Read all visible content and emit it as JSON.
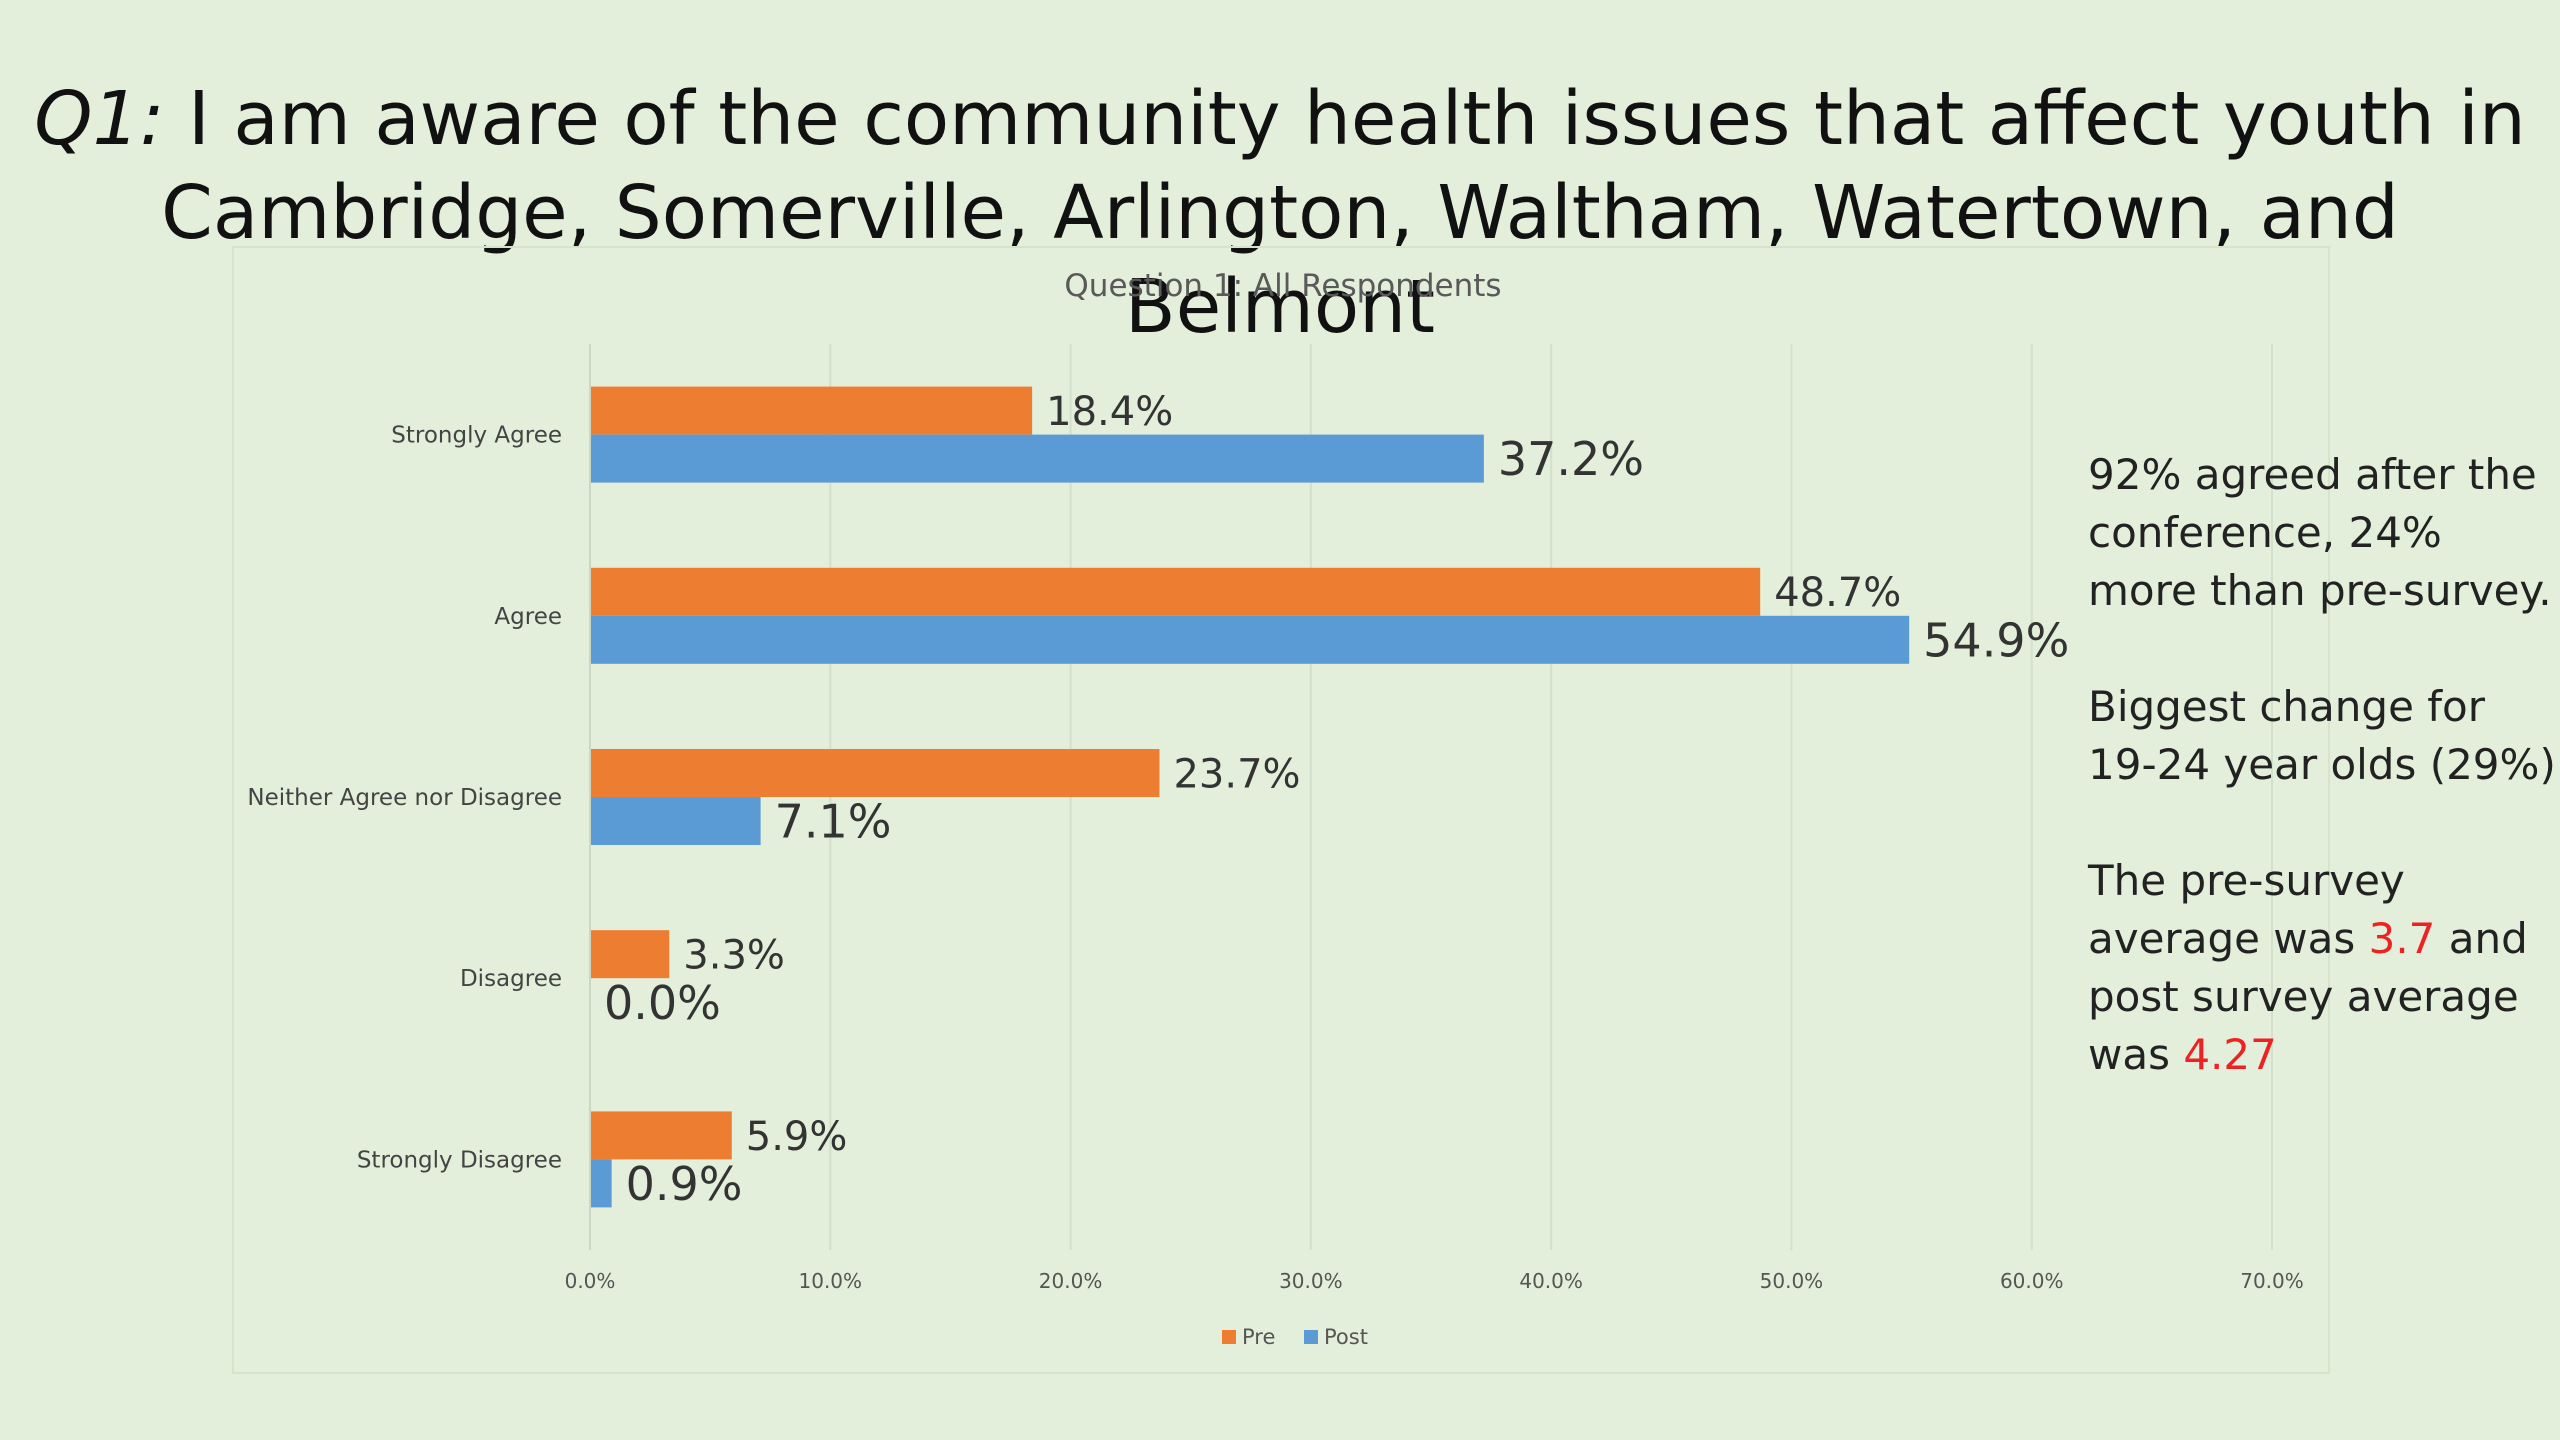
{
  "slide": {
    "title_prefix": "Q1:",
    "title_line1": " I am aware of the community health issues that affect youth in",
    "title_line2": "Cambridge, Somerville, Arlington, Waltham, Watertown, and Belmont"
  },
  "notes": {
    "p1": "92% agreed after the conference, 24% more than pre-survey.",
    "p2": "Biggest change for 19-24 year olds (29%)",
    "p3_a": "The pre-survey average was ",
    "p3_pre_avg": "3.7",
    "p3_b": " and post survey average was ",
    "p3_post_avg": "4.27"
  },
  "colors": {
    "pre": "#ed7d31",
    "post": "#5b9bd5",
    "highlight": "#ee2222"
  },
  "chart_data": {
    "type": "bar",
    "orientation": "horizontal",
    "title": "Question 1: All Respondents",
    "categories": [
      "Strongly Agree",
      "Agree",
      "Neither Agree nor Disagree",
      "Disagree",
      "Strongly Disagree"
    ],
    "series": [
      {
        "name": "Pre",
        "values": [
          18.4,
          48.7,
          23.7,
          3.3,
          5.9
        ],
        "labels": [
          "18.4%",
          "48.7%",
          "23.7%",
          "3.3%",
          "5.9%"
        ]
      },
      {
        "name": "Post",
        "values": [
          37.2,
          54.9,
          7.1,
          0.0,
          0.9
        ],
        "labels": [
          "37.2%",
          "54.9%",
          "7.1%",
          "0.0%",
          "0.9%"
        ]
      }
    ],
    "xlim": [
      0,
      70
    ],
    "xticks": [
      "0.0%",
      "10.0%",
      "20.0%",
      "30.0%",
      "40.0%",
      "50.0%",
      "60.0%",
      "70.0%"
    ],
    "grid": true,
    "legend_position": "bottom"
  }
}
